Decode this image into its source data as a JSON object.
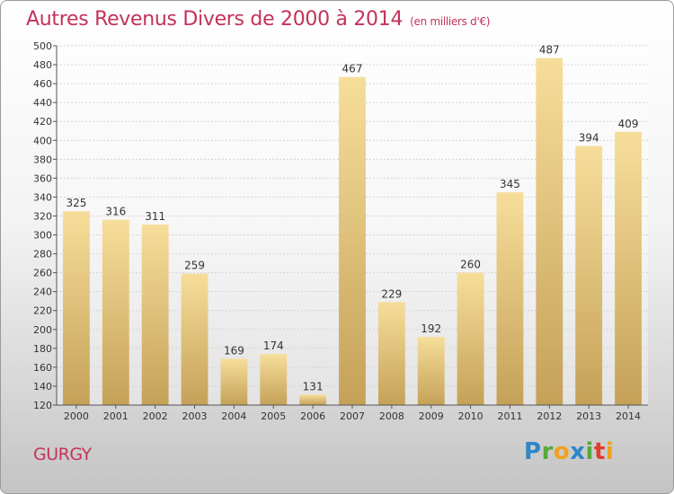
{
  "chart_data": {
    "type": "bar",
    "title": "Autres Revenus Divers de 2000 à 2014",
    "subtitle": "(en milliers d'€)",
    "categories": [
      "2000",
      "2001",
      "2002",
      "2003",
      "2004",
      "2005",
      "2006",
      "2007",
      "2008",
      "2009",
      "2010",
      "2011",
      "2012",
      "2013",
      "2014"
    ],
    "values": [
      325,
      316,
      311,
      259,
      169,
      174,
      131,
      467,
      229,
      192,
      260,
      345,
      487,
      394,
      409
    ],
    "ylim": [
      120,
      500
    ],
    "yticks": [
      120,
      140,
      160,
      180,
      200,
      220,
      240,
      260,
      280,
      300,
      320,
      340,
      360,
      380,
      400,
      420,
      440,
      460,
      480,
      500
    ],
    "grid": "horizontal",
    "colors": {
      "bar_light": "#f5dc97",
      "bar_dark": "#c7a45a",
      "title": "#c4325a"
    }
  },
  "footer": {
    "city": "GURGY",
    "logo": {
      "text": "Proxiti",
      "letters": [
        "P",
        "r",
        "o",
        "x",
        "i",
        "t",
        "i"
      ]
    }
  }
}
